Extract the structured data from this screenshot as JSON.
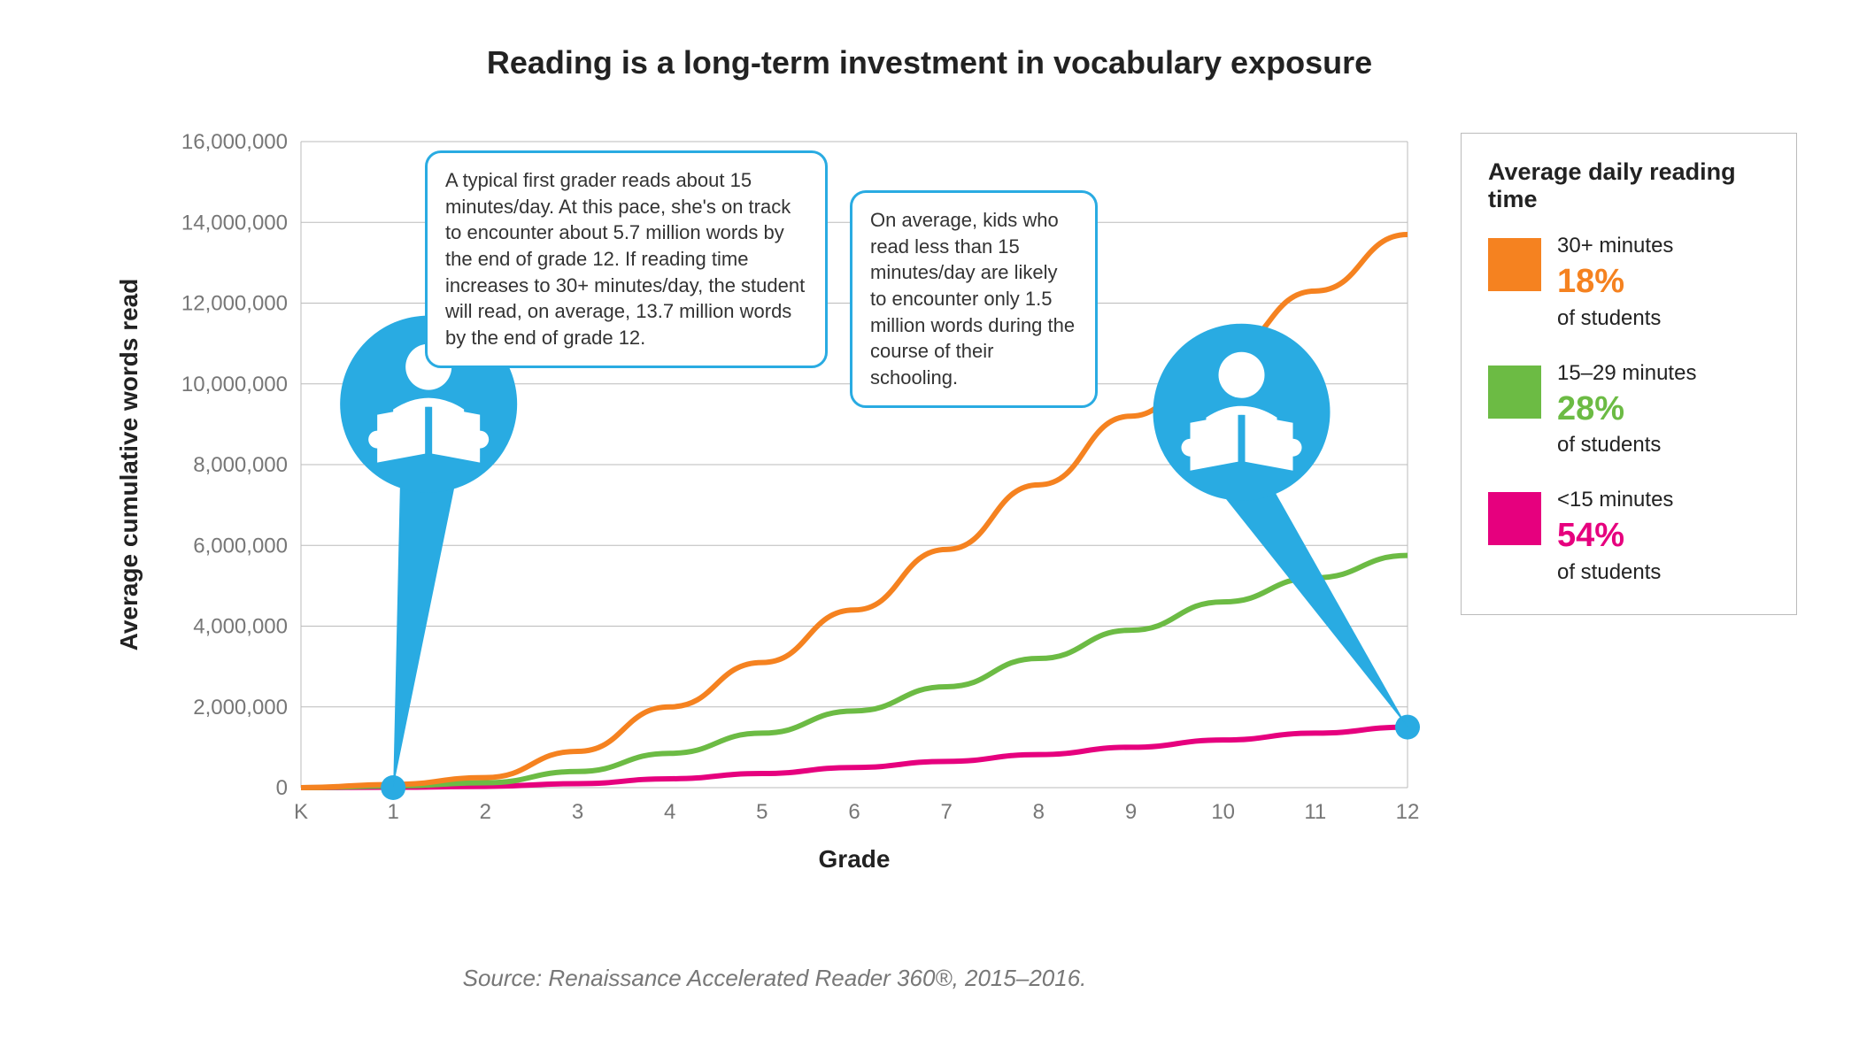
{
  "title": "Reading is a long-term investment in vocabulary exposure",
  "title_fontsize": 36,
  "source": "Source: Renaissance Accelerated Reader 360®, 2015–2016.",
  "source_fontsize": 26,
  "chart": {
    "type": "line",
    "xlabel": "Grade",
    "ylabel": "Average cumulative words read",
    "axis_label_fontsize": 28,
    "tick_fontsize": 24,
    "x_categories": [
      "K",
      "1",
      "2",
      "3",
      "4",
      "5",
      "6",
      "7",
      "8",
      "9",
      "10",
      "11",
      "12"
    ],
    "ylim": [
      0,
      16000000
    ],
    "ytick_step": 2000000,
    "y_ticks": [
      "0",
      "2,000,000",
      "4,000,000",
      "6,000,000",
      "8,000,000",
      "10,000,000",
      "12,000,000",
      "14,000,000",
      "16,000,000"
    ],
    "grid_color": "#bbbbbb",
    "axis_color": "#bbbbbb",
    "background": "#ffffff",
    "series": {
      "high": {
        "label": "30+ minutes",
        "color": "#f58220",
        "values": [
          0,
          80000,
          250000,
          900000,
          2000000,
          3100000,
          4400000,
          5900000,
          7500000,
          9200000,
          10800000,
          12300000,
          13700000
        ]
      },
      "mid": {
        "label": "15–29 minutes",
        "color": "#6cbb44",
        "values": [
          0,
          40000,
          120000,
          400000,
          850000,
          1350000,
          1900000,
          2500000,
          3200000,
          3900000,
          4600000,
          5200000,
          5750000
        ]
      },
      "low": {
        "label": "<15 minutes",
        "color": "#e6007e",
        "values": [
          0,
          10000,
          30000,
          100000,
          220000,
          350000,
          500000,
          650000,
          820000,
          1000000,
          1180000,
          1350000,
          1500000
        ]
      }
    },
    "markers": [
      {
        "x_index": 1,
        "y": 0,
        "color": "#29abe2",
        "radius": 14
      },
      {
        "x_index": 12,
        "y": 1500000,
        "color": "#29abe2",
        "radius": 14
      }
    ]
  },
  "callouts": {
    "left": {
      "text": "A typical first grader reads about 15 minutes/day. At this pace, she's on track to encounter about 5.7 million words by the end of grade 12. If reading time increases to 30+ minutes/day, the student will read, on average, 13.7 million words by the end of grade 12.",
      "border_color": "#29abe2",
      "fontsize": 22
    },
    "right": {
      "text": "On average, kids who read less than 15 minutes/day are likely to encounter only 1.5 million words during the course of their schooling.",
      "border_color": "#29abe2",
      "fontsize": 22
    },
    "pin_color": "#29abe2"
  },
  "legend": {
    "title": "Average daily reading time",
    "title_fontsize": 27,
    "label_fontsize": 24,
    "pct_fontsize": 38,
    "items": [
      {
        "label": "30+ minutes",
        "pct": "18%",
        "sub": "of students",
        "color": "#f58220"
      },
      {
        "label": "15–29 minutes",
        "pct": "28%",
        "sub": "of students",
        "color": "#6cbb44"
      },
      {
        "label": "<15 minutes",
        "pct": "54%",
        "sub": "of students",
        "color": "#e6007e"
      }
    ]
  }
}
